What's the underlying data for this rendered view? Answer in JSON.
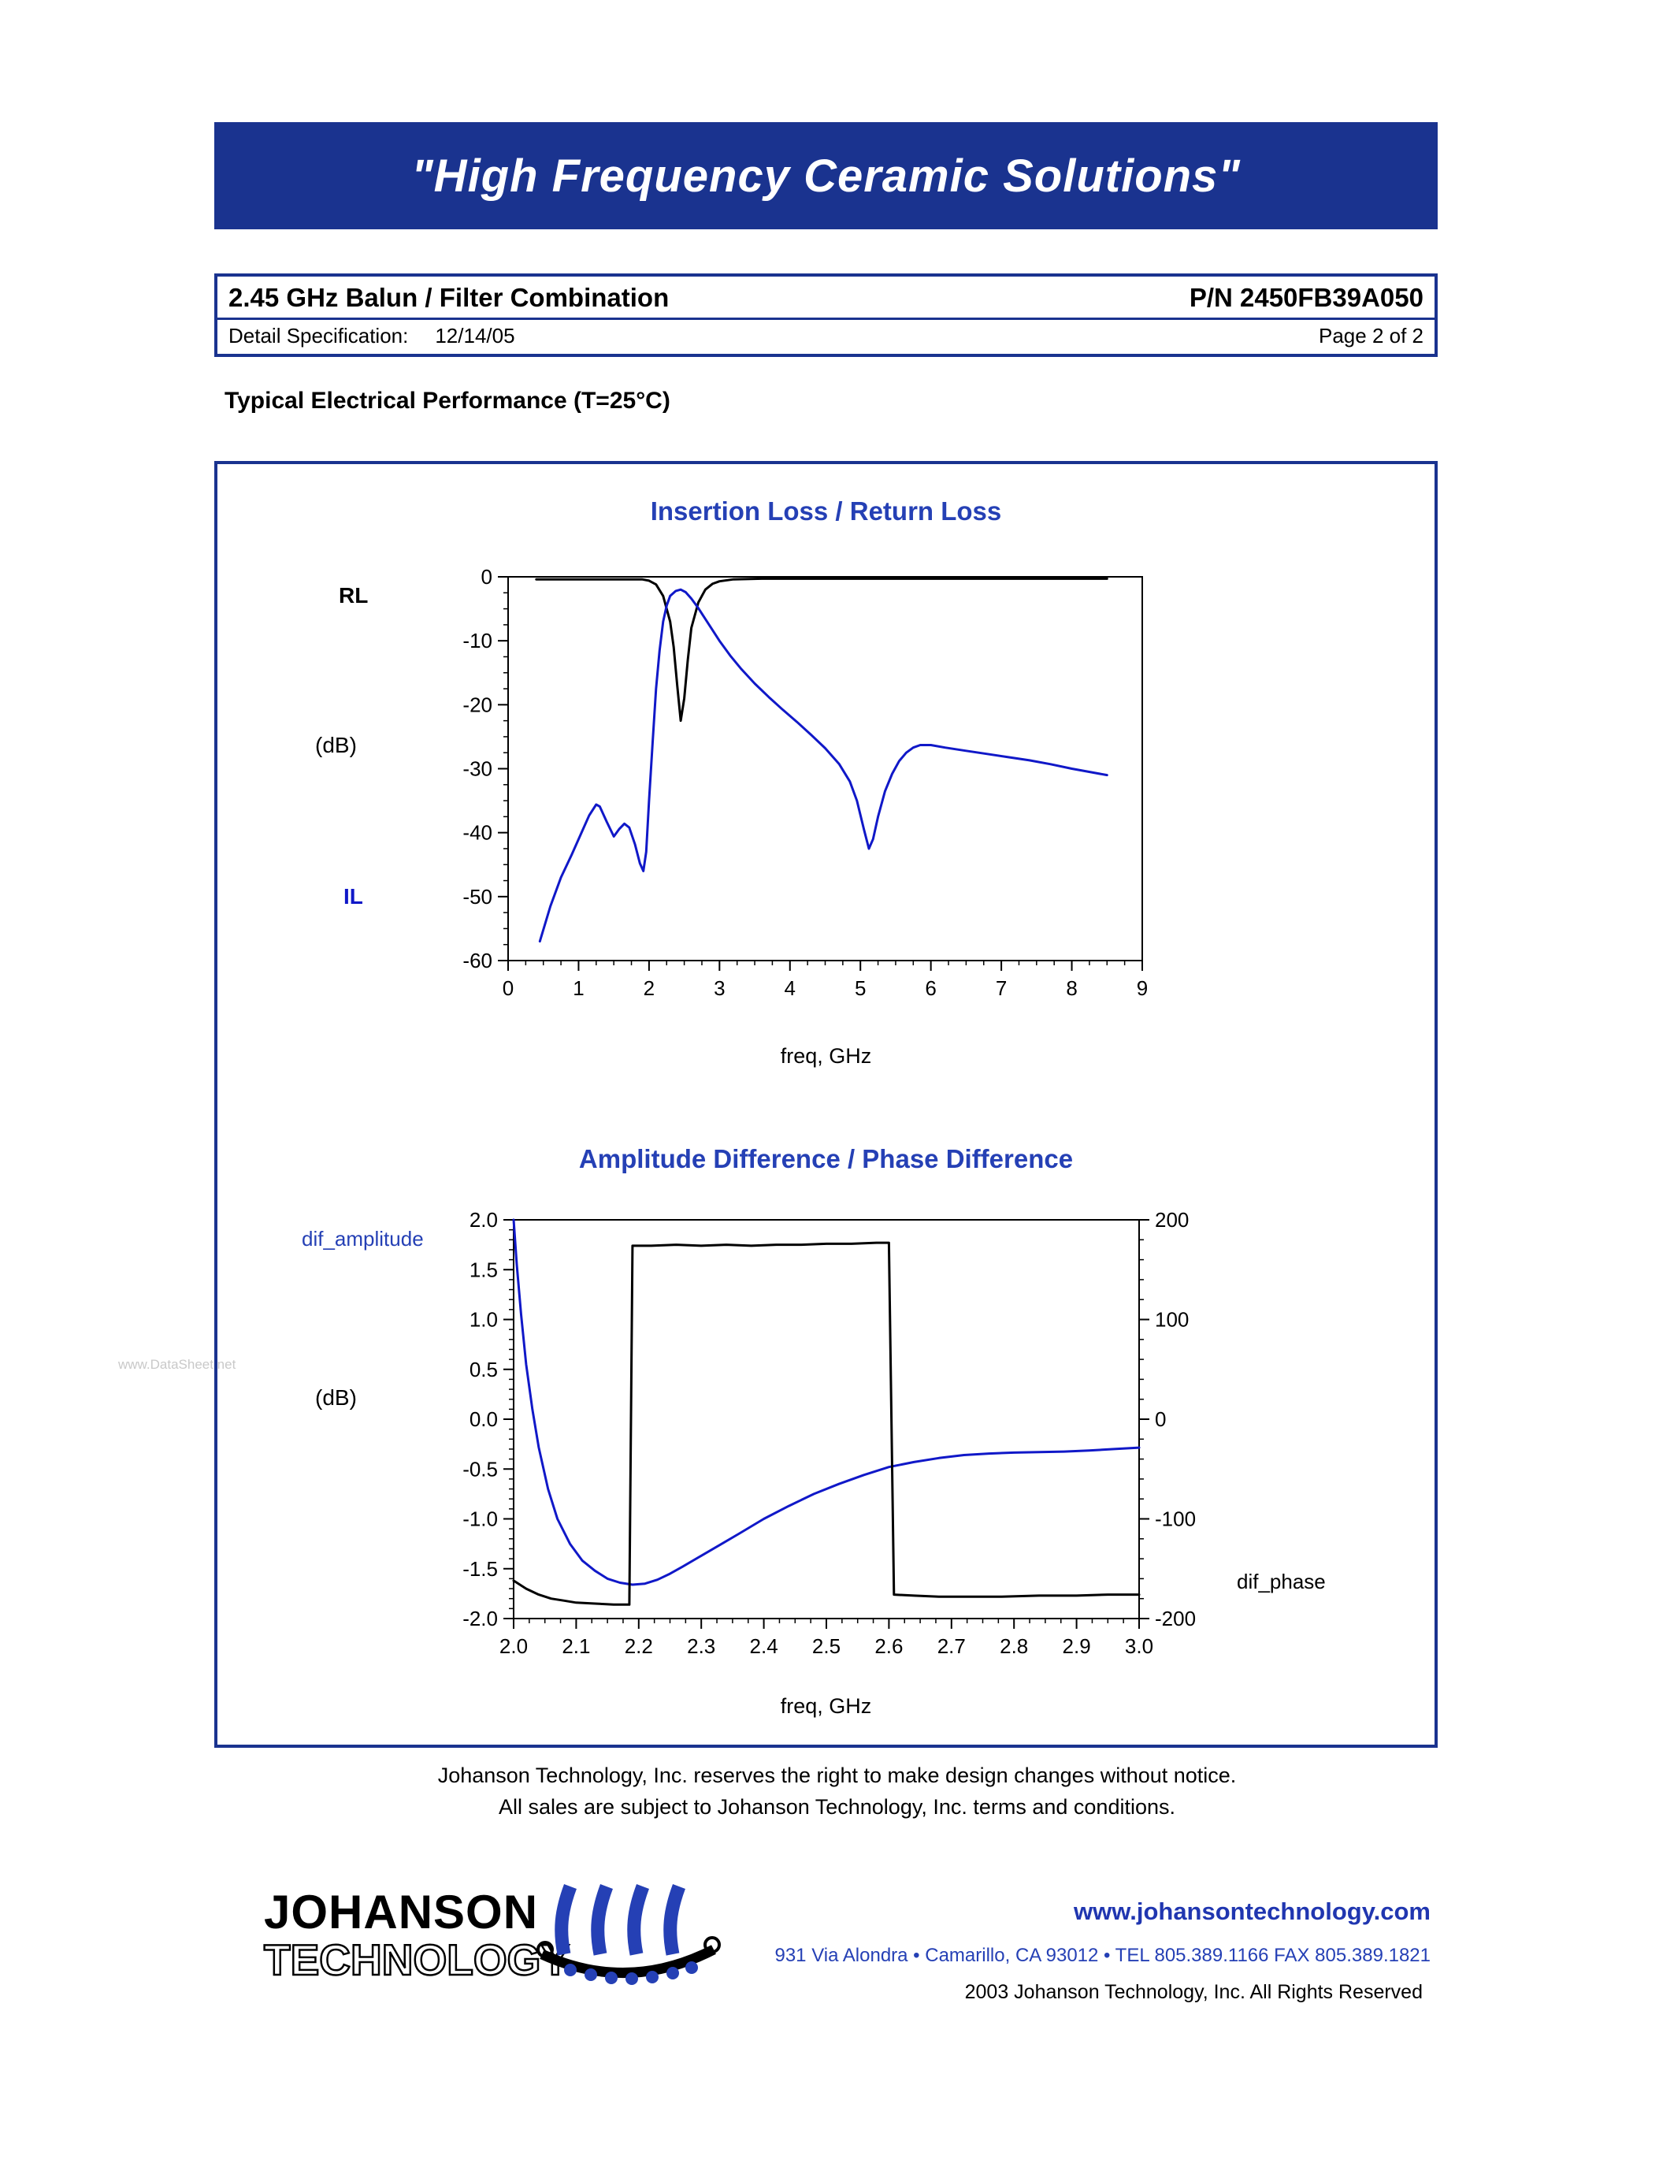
{
  "banner": {
    "text": "\"High Frequency Ceramic Solutions\""
  },
  "header": {
    "title": "2.45 GHz Balun / Filter Combination",
    "part_number": "P/N 2450FB39A050",
    "spec_label": "Detail Specification:",
    "spec_date": "12/14/05",
    "page_label": "Page 2 of 2"
  },
  "section": {
    "heading": "Typical Electrical Performance (T=25°C)"
  },
  "watermark": {
    "text": "www.DataSheet.net"
  },
  "footer": {
    "line1": "Johanson Technology, Inc. reserves the right to make design changes without notice.",
    "line2": "All sales are subject to Johanson Technology, Inc. terms and conditions."
  },
  "logo": {
    "name_top": "JOHANSON",
    "name_bottom": "TECHNOLOGY"
  },
  "contact": {
    "website": "www.johansontechnology.com",
    "address": "931 Via Alondra • Camarillo, CA 93012 • TEL 805.389.1166 FAX 805.389.1821",
    "copyright": "2003 Johanson Technology, Inc.  All Rights Reserved"
  },
  "colors": {
    "navy": "#1a338f",
    "chart_title_blue": "#2540b5",
    "curve_blue": "#1018c8",
    "curve_black": "#000000"
  },
  "chart_data": [
    {
      "type": "line",
      "title": "Insertion Loss / Return Loss",
      "xlabel": "freq, GHz",
      "ylabel": "(dB)",
      "xlim": [
        0,
        9
      ],
      "ylim": [
        -60,
        0
      ],
      "xticks": [
        0,
        1,
        2,
        3,
        4,
        5,
        6,
        7,
        8,
        9
      ],
      "xtick_labels": [
        "0",
        "1",
        "2",
        "3",
        "4",
        "5",
        "6",
        "7",
        "8",
        "9"
      ],
      "yticks": [
        0,
        -10,
        -20,
        -30,
        -40,
        -50,
        -60
      ],
      "ytick_labels": [
        "0",
        "-10",
        "-20",
        "-30",
        "-40",
        "-50",
        "-60"
      ],
      "x_minor_step": 0.25,
      "y_left_minor_step": 2.5,
      "margins": {
        "l": 265,
        "t": 42,
        "r": 130,
        "b": 171
      },
      "series": [
        {
          "name": "RL",
          "axis": "left",
          "color": "#000000",
          "width": 3,
          "points": [
            [
              0.4,
              -0.4
            ],
            [
              1.0,
              -0.4
            ],
            [
              1.6,
              -0.4
            ],
            [
              1.9,
              -0.4
            ],
            [
              2.0,
              -0.6
            ],
            [
              2.1,
              -1.2
            ],
            [
              2.2,
              -3
            ],
            [
              2.3,
              -7
            ],
            [
              2.35,
              -11
            ],
            [
              2.4,
              -17
            ],
            [
              2.45,
              -22.5
            ],
            [
              2.5,
              -19
            ],
            [
              2.55,
              -13
            ],
            [
              2.6,
              -8
            ],
            [
              2.7,
              -4
            ],
            [
              2.8,
              -2
            ],
            [
              2.9,
              -1.1
            ],
            [
              3.0,
              -0.7
            ],
            [
              3.2,
              -0.4
            ],
            [
              3.6,
              -0.3
            ],
            [
              4.0,
              -0.3
            ],
            [
              5.0,
              -0.3
            ],
            [
              6.0,
              -0.3
            ],
            [
              7.0,
              -0.3
            ],
            [
              8.0,
              -0.3
            ],
            [
              8.5,
              -0.3
            ]
          ]
        },
        {
          "name": "IL",
          "axis": "left",
          "color": "#1018c8",
          "width": 3,
          "points": [
            [
              0.45,
              -57
            ],
            [
              0.6,
              -51.5
            ],
            [
              0.75,
              -47
            ],
            [
              0.9,
              -43.5
            ],
            [
              1.05,
              -39.8
            ],
            [
              1.15,
              -37.3
            ],
            [
              1.25,
              -35.6
            ],
            [
              1.3,
              -35.9
            ],
            [
              1.4,
              -38.3
            ],
            [
              1.5,
              -40.6
            ],
            [
              1.58,
              -39.4
            ],
            [
              1.65,
              -38.6
            ],
            [
              1.72,
              -39.2
            ],
            [
              1.8,
              -41.8
            ],
            [
              1.87,
              -44.8
            ],
            [
              1.92,
              -46
            ],
            [
              1.96,
              -43
            ],
            [
              2.0,
              -35
            ],
            [
              2.05,
              -26
            ],
            [
              2.1,
              -17.5
            ],
            [
              2.15,
              -11.5
            ],
            [
              2.2,
              -7
            ],
            [
              2.25,
              -4.5
            ],
            [
              2.3,
              -3
            ],
            [
              2.38,
              -2.2
            ],
            [
              2.45,
              -2
            ],
            [
              2.52,
              -2.4
            ],
            [
              2.6,
              -3.4
            ],
            [
              2.7,
              -4.9
            ],
            [
              2.8,
              -6.6
            ],
            [
              2.9,
              -8.3
            ],
            [
              3.0,
              -10
            ],
            [
              3.15,
              -12.3
            ],
            [
              3.3,
              -14.3
            ],
            [
              3.5,
              -16.7
            ],
            [
              3.7,
              -18.8
            ],
            [
              3.9,
              -20.8
            ],
            [
              4.1,
              -22.7
            ],
            [
              4.3,
              -24.7
            ],
            [
              4.5,
              -26.8
            ],
            [
              4.7,
              -29.3
            ],
            [
              4.85,
              -32
            ],
            [
              4.95,
              -35
            ],
            [
              5.05,
              -39.5
            ],
            [
              5.12,
              -42.5
            ],
            [
              5.18,
              -41
            ],
            [
              5.25,
              -37.5
            ],
            [
              5.35,
              -33.5
            ],
            [
              5.45,
              -30.8
            ],
            [
              5.55,
              -28.8
            ],
            [
              5.65,
              -27.5
            ],
            [
              5.75,
              -26.7
            ],
            [
              5.85,
              -26.3
            ],
            [
              6.0,
              -26.3
            ],
            [
              6.2,
              -26.7
            ],
            [
              6.5,
              -27.2
            ],
            [
              6.8,
              -27.7
            ],
            [
              7.1,
              -28.2
            ],
            [
              7.4,
              -28.7
            ],
            [
              7.7,
              -29.3
            ],
            [
              8.0,
              -30
            ],
            [
              8.3,
              -30.6
            ],
            [
              8.5,
              -31
            ]
          ]
        }
      ]
    },
    {
      "type": "line",
      "title": "Amplitude Difference / Phase Difference",
      "xlabel": "freq, GHz",
      "ylabel_left": "(dB)",
      "xlim": [
        2.0,
        3.0
      ],
      "ylim_left": [
        -2.0,
        2.0
      ],
      "ylim_right": [
        -200,
        200
      ],
      "xticks": [
        2.0,
        2.1,
        2.2,
        2.3,
        2.4,
        2.5,
        2.6,
        2.7,
        2.8,
        2.9,
        3.0
      ],
      "xtick_labels": [
        "2.0",
        "2.1",
        "2.2",
        "2.3",
        "2.4",
        "2.5",
        "2.6",
        "2.7",
        "2.8",
        "2.9",
        "3.0"
      ],
      "yticks_left": [
        2.0,
        1.5,
        1.0,
        0.5,
        0.0,
        -0.5,
        -1.0,
        -1.5,
        -2.0
      ],
      "ytick_labels_left": [
        "2.0",
        "1.5",
        "1.0",
        "0.5",
        "0.0",
        "-0.5",
        "-1.0",
        "-1.5",
        "-2.0"
      ],
      "yticks_right": [
        200,
        100,
        0,
        -100,
        -200
      ],
      "ytick_labels_right": [
        "200",
        "100",
        "0",
        "-100",
        "-200"
      ],
      "x_minor_step": 0.025,
      "y_left_minor_step": 0.1,
      "y_right_minor_step": 20,
      "margins": {
        "l": 272,
        "t": 28,
        "r": 234,
        "b": 186
      },
      "series": [
        {
          "name": "dif_amplitude",
          "axis": "left",
          "color": "#1018c8",
          "width": 3,
          "points": [
            [
              2.0,
              2.0
            ],
            [
              2.005,
              1.55
            ],
            [
              2.012,
              1.05
            ],
            [
              2.02,
              0.55
            ],
            [
              2.03,
              0.1
            ],
            [
              2.04,
              -0.28
            ],
            [
              2.055,
              -0.7
            ],
            [
              2.07,
              -1.0
            ],
            [
              2.09,
              -1.25
            ],
            [
              2.11,
              -1.42
            ],
            [
              2.13,
              -1.52
            ],
            [
              2.15,
              -1.6
            ],
            [
              2.17,
              -1.64
            ],
            [
              2.19,
              -1.66
            ],
            [
              2.21,
              -1.65
            ],
            [
              2.23,
              -1.61
            ],
            [
              2.25,
              -1.55
            ],
            [
              2.27,
              -1.48
            ],
            [
              2.3,
              -1.37
            ],
            [
              2.33,
              -1.26
            ],
            [
              2.36,
              -1.15
            ],
            [
              2.4,
              -1.0
            ],
            [
              2.44,
              -0.87
            ],
            [
              2.48,
              -0.75
            ],
            [
              2.52,
              -0.65
            ],
            [
              2.56,
              -0.56
            ],
            [
              2.6,
              -0.48
            ],
            [
              2.64,
              -0.43
            ],
            [
              2.68,
              -0.39
            ],
            [
              2.72,
              -0.36
            ],
            [
              2.76,
              -0.345
            ],
            [
              2.8,
              -0.335
            ],
            [
              2.84,
              -0.33
            ],
            [
              2.88,
              -0.325
            ],
            [
              2.92,
              -0.315
            ],
            [
              2.96,
              -0.3
            ],
            [
              3.0,
              -0.285
            ]
          ]
        },
        {
          "name": "dif_phase",
          "axis": "right",
          "color": "#000000",
          "width": 3,
          "points": [
            [
              2.0,
              -162
            ],
            [
              2.02,
              -170
            ],
            [
              2.04,
              -176
            ],
            [
              2.06,
              -180
            ],
            [
              2.08,
              -182
            ],
            [
              2.1,
              -184
            ],
            [
              2.13,
              -185
            ],
            [
              2.16,
              -186
            ],
            [
              2.185,
              -186
            ],
            [
              2.19,
              174
            ],
            [
              2.22,
              174
            ],
            [
              2.26,
              175
            ],
            [
              2.3,
              174
            ],
            [
              2.34,
              175
            ],
            [
              2.38,
              174
            ],
            [
              2.42,
              175
            ],
            [
              2.46,
              175
            ],
            [
              2.5,
              176
            ],
            [
              2.54,
              176
            ],
            [
              2.58,
              177
            ],
            [
              2.6,
              177
            ],
            [
              2.608,
              -176
            ],
            [
              2.64,
              -177
            ],
            [
              2.68,
              -178
            ],
            [
              2.72,
              -178
            ],
            [
              2.78,
              -178
            ],
            [
              2.84,
              -177
            ],
            [
              2.9,
              -177
            ],
            [
              2.95,
              -176
            ],
            [
              3.0,
              -176
            ]
          ]
        }
      ]
    }
  ]
}
